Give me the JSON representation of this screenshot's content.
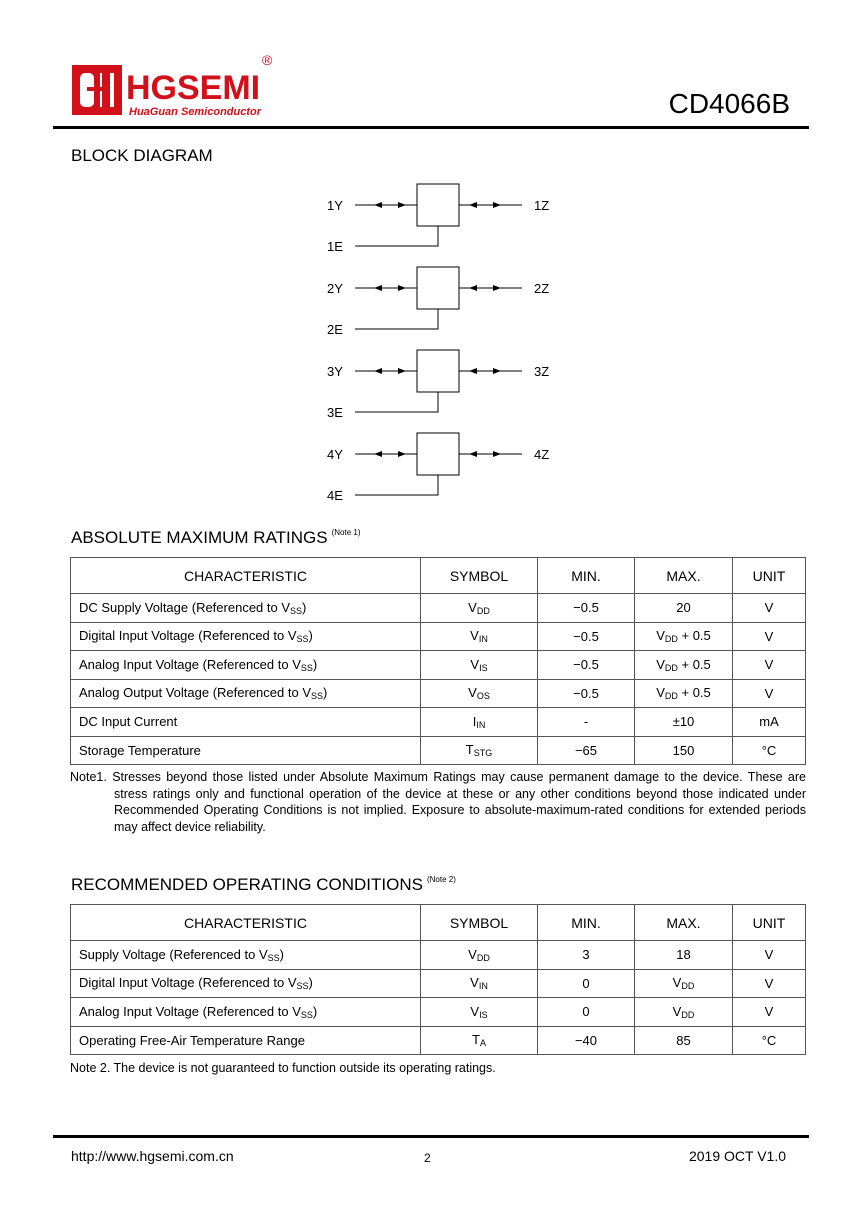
{
  "header": {
    "logo_text": "HGSEMI",
    "logo_subtext": "HuaGuan Semiconductor",
    "registered_mark": "®",
    "part_number": "CD4066B"
  },
  "block_diagram": {
    "title": "BLOCK DIAGRAM",
    "switches": [
      {
        "y": "1Y",
        "z": "1Z",
        "e": "1E"
      },
      {
        "y": "2Y",
        "z": "2Z",
        "e": "2E"
      },
      {
        "y": "3Y",
        "z": "3Z",
        "e": "3E"
      },
      {
        "y": "4Y",
        "z": "4Z",
        "e": "4E"
      }
    ]
  },
  "abs_max": {
    "title": "ABSOLUTE MAXIMUM RATINGS",
    "note_ref": "(Note 1)",
    "headers": [
      "CHARACTERISTIC",
      "SYMBOL",
      "MIN.",
      "MAX.",
      "UNIT"
    ],
    "rows": [
      [
        {
          "t": "DC Supply Voltage (Referenced to V",
          "s": "SS",
          "a": ")"
        },
        {
          "t": "V",
          "s": "DD"
        },
        {
          "t": "−0.5"
        },
        {
          "t": "20"
        },
        {
          "t": "V"
        }
      ],
      [
        {
          "t": "Digital Input Voltage (Referenced to V",
          "s": "SS",
          "a": ")"
        },
        {
          "t": "V",
          "s": "IN"
        },
        {
          "t": "−0.5"
        },
        {
          "t": "V",
          "s": "DD",
          "a": " + 0.5"
        },
        {
          "t": "V"
        }
      ],
      [
        {
          "t": "Analog Input Voltage (Referenced to V",
          "s": "SS",
          "a": ")"
        },
        {
          "t": "V",
          "s": "IS"
        },
        {
          "t": "−0.5"
        },
        {
          "t": "V",
          "s": "DD",
          "a": " + 0.5"
        },
        {
          "t": "V"
        }
      ],
      [
        {
          "t": "Analog Output Voltage (Referenced to V",
          "s": "SS",
          "a": ")"
        },
        {
          "t": "V",
          "s": "OS"
        },
        {
          "t": "−0.5"
        },
        {
          "t": "V",
          "s": "DD",
          "a": " + 0.5"
        },
        {
          "t": "V"
        }
      ],
      [
        {
          "t": "DC Input Current"
        },
        {
          "t": "I",
          "s": "IN"
        },
        {
          "t": "-"
        },
        {
          "t": "±10"
        },
        {
          "t": "mA"
        }
      ],
      [
        {
          "t": "Storage Temperature"
        },
        {
          "t": "T",
          "s": "STG"
        },
        {
          "t": "−65"
        },
        {
          "t": "150"
        },
        {
          "t": "°C"
        }
      ]
    ],
    "note": "Note1. Stresses beyond those listed under Absolute Maximum Ratings may cause permanent damage to the device. These are stress ratings only and functional operation of the device at these or any other conditions beyond those indicated under Recommended Operating Conditions is not implied. Exposure to absolute-maximum-rated conditions for extended periods may affect device reliability."
  },
  "rec_op": {
    "title": "RECOMMENDED OPERATING CONDITIONS",
    "note_ref": "(Note 2)",
    "headers": [
      "CHARACTERISTIC",
      "SYMBOL",
      "MIN.",
      "MAX.",
      "UNIT"
    ],
    "rows": [
      [
        {
          "t": "Supply Voltage (Referenced to V",
          "s": "SS",
          "a": ")"
        },
        {
          "t": "V",
          "s": "DD"
        },
        {
          "t": "3"
        },
        {
          "t": "18"
        },
        {
          "t": "V"
        }
      ],
      [
        {
          "t": "Digital Input Voltage (Referenced to V",
          "s": "SS",
          "a": ")"
        },
        {
          "t": "V",
          "s": "IN"
        },
        {
          "t": "0"
        },
        {
          "t": "V",
          "s": "DD"
        },
        {
          "t": "V"
        }
      ],
      [
        {
          "t": "Analog Input Voltage (Referenced to V",
          "s": "SS",
          "a": ")"
        },
        {
          "t": "V",
          "s": "IS"
        },
        {
          "t": "0"
        },
        {
          "t": "V",
          "s": "DD"
        },
        {
          "t": "V"
        }
      ],
      [
        {
          "t": "Operating Free-Air Temperature Range"
        },
        {
          "t": "T",
          "s": "A"
        },
        {
          "t": "−40"
        },
        {
          "t": "85"
        },
        {
          "t": "°C"
        }
      ]
    ],
    "note": "Note 2. The device is not guaranteed to function outside its operating ratings."
  },
  "footer": {
    "url": "http://www.hgsemi.com.cn",
    "page": "2",
    "version": "2019 OCT V1.0"
  },
  "colors": {
    "brand_red": "#d2101a"
  }
}
